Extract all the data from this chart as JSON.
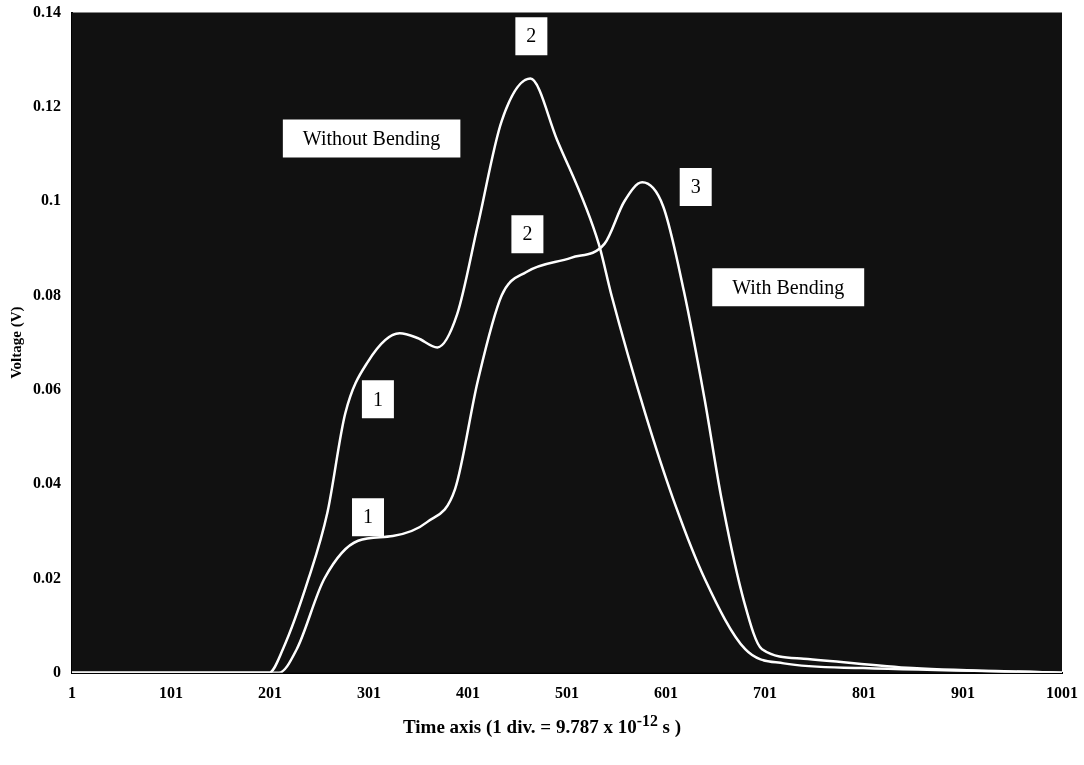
{
  "chart_data": {
    "type": "line",
    "xlabel": "Time axis (1 div. = 9.787 x 10$^{-12}$ s )",
    "ylabel": "Voltage (V)",
    "xlim": [
      1,
      1001
    ],
    "xticks": [
      1,
      101,
      201,
      301,
      401,
      501,
      601,
      701,
      801,
      901,
      1001
    ],
    "ylim": [
      0,
      0.14
    ],
    "yticks": [
      0,
      0.02,
      0.04,
      0.06,
      0.08,
      0.1,
      0.12,
      0.14
    ],
    "grid": false,
    "legend": false,
    "marker": "none",
    "line_style": "solid",
    "series": [
      {
        "name": "Without Bending",
        "color": "#ffffff",
        "x": [
          1,
          200,
          214,
          240,
          259,
          277,
          300,
          332,
          350,
          370,
          390,
          411,
          435,
          464,
          491,
          533,
          546,
          580,
          608,
          640,
          681,
          720,
          800,
          1001
        ],
        "values": [
          0,
          0,
          0.005,
          0.02,
          0.034,
          0.055,
          0.066,
          0.072,
          0.071,
          0.069,
          0.076,
          0.095,
          0.117,
          0.126,
          0.113,
          0.091,
          0.08,
          0.055,
          0.037,
          0.02,
          0.005,
          0.002,
          0.001,
          0
        ]
      },
      {
        "name": "With Bending",
        "color": "#ffffff",
        "x": [
          1,
          210,
          228,
          256,
          290,
          325,
          360,
          388,
          411,
          435,
          460,
          505,
          539,
          559,
          577,
          598,
          619,
          640,
          657,
          680,
          698,
          740,
          850,
          1001
        ],
        "values": [
          0,
          0,
          0.005,
          0.02,
          0.028,
          0.029,
          0.032,
          0.039,
          0.062,
          0.08,
          0.085,
          0.088,
          0.091,
          0.1,
          0.104,
          0.099,
          0.081,
          0.058,
          0.037,
          0.015,
          0.005,
          0.003,
          0.001,
          0
        ]
      }
    ],
    "annotations": [
      {
        "text": "1",
        "x": 310,
        "y": 0.058
      },
      {
        "text": "2",
        "x": 465,
        "y": 0.135
      },
      {
        "text": "1",
        "x": 300,
        "y": 0.033
      },
      {
        "text": "2",
        "x": 461,
        "y": 0.093
      },
      {
        "text": "3",
        "x": 631,
        "y": 0.103
      }
    ]
  }
}
